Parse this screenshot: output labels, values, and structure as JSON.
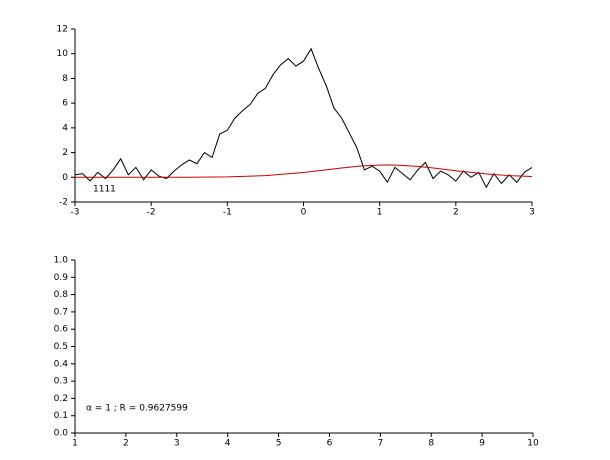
{
  "chart_data": [
    {
      "type": "line",
      "annotation": "1111",
      "xlim": [
        -3,
        3
      ],
      "xticks": [
        -3,
        -2,
        -1,
        0,
        1,
        2,
        3
      ],
      "ylim": [
        -2,
        12
      ],
      "yticks": [
        -2,
        0,
        2,
        4,
        6,
        8,
        10,
        12
      ],
      "series": [
        {
          "color": "#000000",
          "x": [
            -3.0,
            -2.9,
            -2.8,
            -2.7,
            -2.6,
            -2.5,
            -2.4,
            -2.3,
            -2.2,
            -2.1,
            -2.0,
            -1.9,
            -1.8,
            -1.7,
            -1.6,
            -1.5,
            -1.4,
            -1.3,
            -1.2,
            -1.1,
            -1.0,
            -0.9,
            -0.8,
            -0.7,
            -0.6,
            -0.5,
            -0.4,
            -0.3,
            -0.2,
            -0.1,
            0.0,
            0.1,
            0.2,
            0.3,
            0.4,
            0.5,
            0.6,
            0.7,
            0.8,
            0.9,
            1.0,
            1.1,
            1.2,
            1.3,
            1.4,
            1.5,
            1.6,
            1.7,
            1.8,
            1.9,
            2.0,
            2.1,
            2.2,
            2.3,
            2.4,
            2.5,
            2.6,
            2.7,
            2.8,
            2.9,
            3.0
          ],
          "values": [
            0.2,
            0.3,
            -0.3,
            0.4,
            -0.1,
            0.6,
            1.5,
            0.2,
            0.8,
            -0.2,
            0.6,
            0.1,
            -0.1,
            0.5,
            1.0,
            1.4,
            1.1,
            2.0,
            1.6,
            3.5,
            3.8,
            4.8,
            5.4,
            5.9,
            6.8,
            7.2,
            8.3,
            9.1,
            9.6,
            9.0,
            9.4,
            10.4,
            8.8,
            7.4,
            5.6,
            4.8,
            3.6,
            2.4,
            0.6,
            0.9,
            0.5,
            -0.4,
            0.8,
            0.3,
            -0.2,
            0.6,
            1.2,
            -0.1,
            0.5,
            0.2,
            -0.3,
            0.5,
            0.0,
            0.4,
            -0.8,
            0.3,
            -0.5,
            0.2,
            -0.4,
            0.4,
            0.8
          ]
        },
        {
          "color": "#cc0000",
          "x": [
            -3.0,
            -2.5,
            -2.0,
            -1.5,
            -1.0,
            -0.5,
            0.0,
            0.25,
            0.5,
            0.75,
            1.0,
            1.1,
            1.25,
            1.5,
            1.75,
            2.0,
            2.25,
            2.5,
            2.75,
            3.0
          ],
          "values": [
            0.0,
            0.0,
            0.0,
            0.01,
            0.03,
            0.14,
            0.39,
            0.57,
            0.75,
            0.91,
            0.99,
            1.0,
            0.98,
            0.88,
            0.72,
            0.53,
            0.36,
            0.22,
            0.12,
            0.06
          ]
        }
      ]
    },
    {
      "type": "line",
      "annotation": "α = 1 ; R = 0.9627599",
      "xlim": [
        1,
        10
      ],
      "xticks": [
        1,
        2,
        3,
        4,
        5,
        6,
        7,
        8,
        9,
        10
      ],
      "ylim": [
        0,
        1
      ],
      "yticks": [
        {
          "value": 0,
          "label": "0.0"
        },
        0.1,
        0.2,
        0.3,
        0.4,
        0.5,
        0.6,
        0.7,
        0.8,
        0.9,
        {
          "value": 1,
          "label": "1.0"
        }
      ],
      "series": []
    }
  ]
}
